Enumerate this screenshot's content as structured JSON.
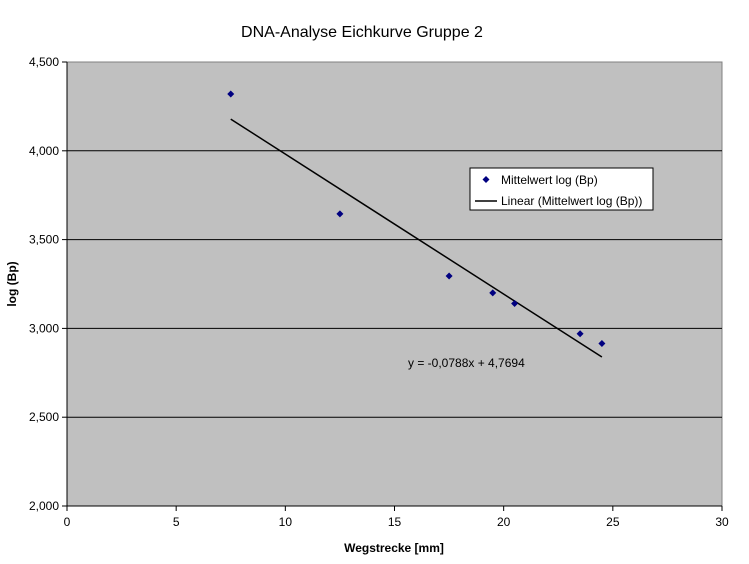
{
  "chart_data": {
    "type": "scatter",
    "title": "DNA-Analyse Eichkurve Gruppe 2",
    "xlabel": "Wegstrecke [mm]",
    "ylabel": "log (Bp)",
    "xlim": [
      0,
      30
    ],
    "ylim": [
      2.0,
      4.5
    ],
    "xticks": [
      0,
      5,
      10,
      15,
      20,
      25,
      30
    ],
    "xtick_labels": [
      "0",
      "5",
      "10",
      "15",
      "20",
      "25",
      "30"
    ],
    "yticks": [
      2.0,
      2.5,
      3.0,
      3.5,
      4.0,
      4.5
    ],
    "ytick_labels": [
      "2,000",
      "2,500",
      "3,000",
      "3,500",
      "4,000",
      "4,500"
    ],
    "grid": "horizontal",
    "plot_background": "#c0c0c0",
    "marker_color": "#000080",
    "series": [
      {
        "name": "Mittelwert log (Bp)",
        "x": [
          7.5,
          12.5,
          17.5,
          19.5,
          20.5,
          23.5,
          24.5
        ],
        "y": [
          4.32,
          3.645,
          3.295,
          3.2,
          3.14,
          2.97,
          2.915
        ]
      }
    ],
    "trendline": {
      "name": "Linear (Mittelwert log (Bp))",
      "slope": -0.0788,
      "intercept": 4.7694,
      "x_range": [
        7.5,
        24.5
      ],
      "equation_label": "y = -0,0788x + 4,7694"
    },
    "legend": "right, inside plot"
  }
}
